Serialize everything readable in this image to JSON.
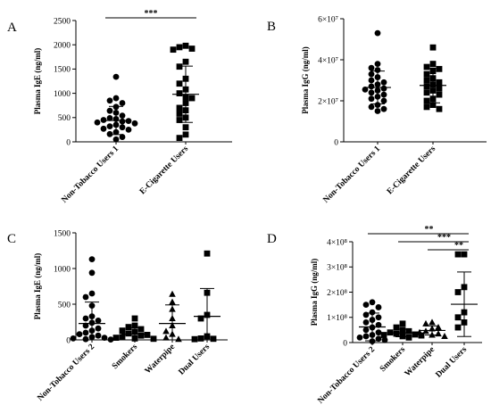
{
  "chart_data": [
    {
      "type": "scatter",
      "panel_label": "A",
      "ylabel": "Plasma IgE (ng/ml)",
      "ylim": [
        0,
        2500
      ],
      "yticks": [
        "0",
        "500",
        "1000",
        "1500",
        "2000",
        "2500"
      ],
      "categories": [
        "Non-Tobacco Users 1",
        "E-Cigarette Users"
      ],
      "markers": [
        "circle",
        "square"
      ],
      "series": [
        {
          "name": "Non-Tobacco Users 1",
          "mean": 440,
          "sd": 290,
          "values": [
            1340,
            900,
            850,
            800,
            720,
            640,
            600,
            540,
            490,
            470,
            450,
            430,
            420,
            400,
            380,
            350,
            320,
            300,
            270,
            250,
            200,
            160,
            100,
            50
          ]
        },
        {
          "name": "E-Cigarette Users",
          "mean": 980,
          "sd": 580,
          "values": [
            1980,
            1950,
            1920,
            1900,
            1650,
            1550,
            1300,
            1200,
            1080,
            1000,
            920,
            900,
            800,
            700,
            650,
            580,
            500,
            450,
            300,
            150,
            80
          ]
        }
      ],
      "significance": [
        {
          "from": 0,
          "to": 1,
          "label": "***"
        }
      ]
    },
    {
      "type": "scatter",
      "panel_label": "B",
      "ylabel": "Plasma IgG (ng/ml)",
      "ylim": [
        0,
        60000000
      ],
      "yticks": [
        "0",
        "2×10⁷",
        "4×10⁷",
        "6×10⁷"
      ],
      "categories": [
        "Non-Tobacco Users 1",
        "E-Cigarette Users"
      ],
      "markers": [
        "circle",
        "square"
      ],
      "series": [
        {
          "name": "Non-Tobacco Users 1",
          "mean": 26500000,
          "sd": 8000000,
          "values": [
            53000000,
            38000000,
            36000000,
            35000000,
            33000000,
            31500000,
            30000000,
            29000000,
            28000000,
            27000000,
            26000000,
            25500000,
            25000000,
            24000000,
            23000000,
            22000000,
            21000000,
            20000000,
            18000000,
            17000000,
            16000000,
            15000000
          ]
        },
        {
          "name": "E-Cigarette Users",
          "mean": 27500000,
          "sd": 8500000,
          "values": [
            46000000,
            38000000,
            36500000,
            35500000,
            34500000,
            33000000,
            31000000,
            30000000,
            29000000,
            28000000,
            27000000,
            26000000,
            25000000,
            24000000,
            23000000,
            21000000,
            20000000,
            18000000,
            17000000,
            16000000
          ]
        }
      ]
    },
    {
      "type": "scatter",
      "panel_label": "C",
      "ylabel": "Plasma IgE (ng/ml)",
      "ylim": [
        0,
        1500
      ],
      "yticks": [
        "0",
        "500",
        "1000",
        "1500"
      ],
      "categories": [
        "Non-Tobacco Users 2",
        "Smokers",
        "Waterpipe",
        "Dual Users"
      ],
      "markers": [
        "circle",
        "square",
        "triangle",
        "square"
      ],
      "series": [
        {
          "name": "Non-Tobacco Users 2",
          "mean": 230,
          "sd": 300,
          "values": [
            1130,
            940,
            650,
            600,
            480,
            330,
            300,
            270,
            240,
            200,
            160,
            130,
            100,
            80,
            60,
            40,
            30,
            20,
            10,
            5
          ]
        },
        {
          "name": "Smokers",
          "mean": 80,
          "sd": 90,
          "values": [
            300,
            200,
            180,
            150,
            130,
            110,
            90,
            70,
            60,
            40,
            30,
            20,
            15
          ]
        },
        {
          "name": "Waterpipe",
          "mean": 230,
          "sd": 260,
          "values": [
            640,
            530,
            430,
            300,
            200,
            120,
            80,
            30,
            10
          ]
        },
        {
          "name": "Dual Users",
          "mean": 330,
          "sd": 390,
          "values": [
            1210,
            660,
            350,
            300,
            50,
            20,
            15,
            10
          ]
        }
      ]
    },
    {
      "type": "scatter",
      "panel_label": "D",
      "ylabel": "Plasma IgG (ng/ml)",
      "ylim": [
        0,
        400000000
      ],
      "yticks": [
        "0",
        "1×10⁸",
        "2×10⁸",
        "3×10⁸",
        "4×10⁸"
      ],
      "categories": [
        "Non-Tobacco Users 2",
        "Smokers",
        "Waterpipe",
        "Dual Users"
      ],
      "markers": [
        "circle",
        "square",
        "triangle",
        "square"
      ],
      "series": [
        {
          "name": "Non-Tobacco Users 2",
          "mean": 62000000,
          "sd": 55000000,
          "values": [
            160000000,
            150000000,
            140000000,
            120000000,
            110000000,
            100000000,
            90000000,
            80000000,
            70000000,
            60000000,
            50000000,
            40000000,
            30000000,
            25000000,
            20000000,
            15000000,
            10000000,
            5000000
          ]
        },
        {
          "name": "Smokers",
          "mean": 38000000,
          "sd": 15000000,
          "values": [
            75000000,
            60000000,
            50000000,
            45000000,
            40000000,
            35000000,
            32000000,
            30000000,
            28000000,
            25000000,
            20000000
          ]
        },
        {
          "name": "Waterpipe",
          "mean": 48000000,
          "sd": 18000000,
          "values": [
            80000000,
            75000000,
            60000000,
            55000000,
            45000000,
            40000000,
            35000000,
            30000000,
            25000000
          ]
        },
        {
          "name": "Dual Users",
          "mean": 152000000,
          "sd": 128000000,
          "values": [
            350000000,
            350000000,
            220000000,
            200000000,
            120000000,
            100000000,
            80000000,
            60000000
          ]
        }
      ],
      "significance": [
        {
          "from": 0,
          "to": 3,
          "label": "**"
        },
        {
          "from": 1,
          "to": 3,
          "label": "***"
        },
        {
          "from": 2,
          "to": 3,
          "label": "**"
        }
      ]
    }
  ]
}
